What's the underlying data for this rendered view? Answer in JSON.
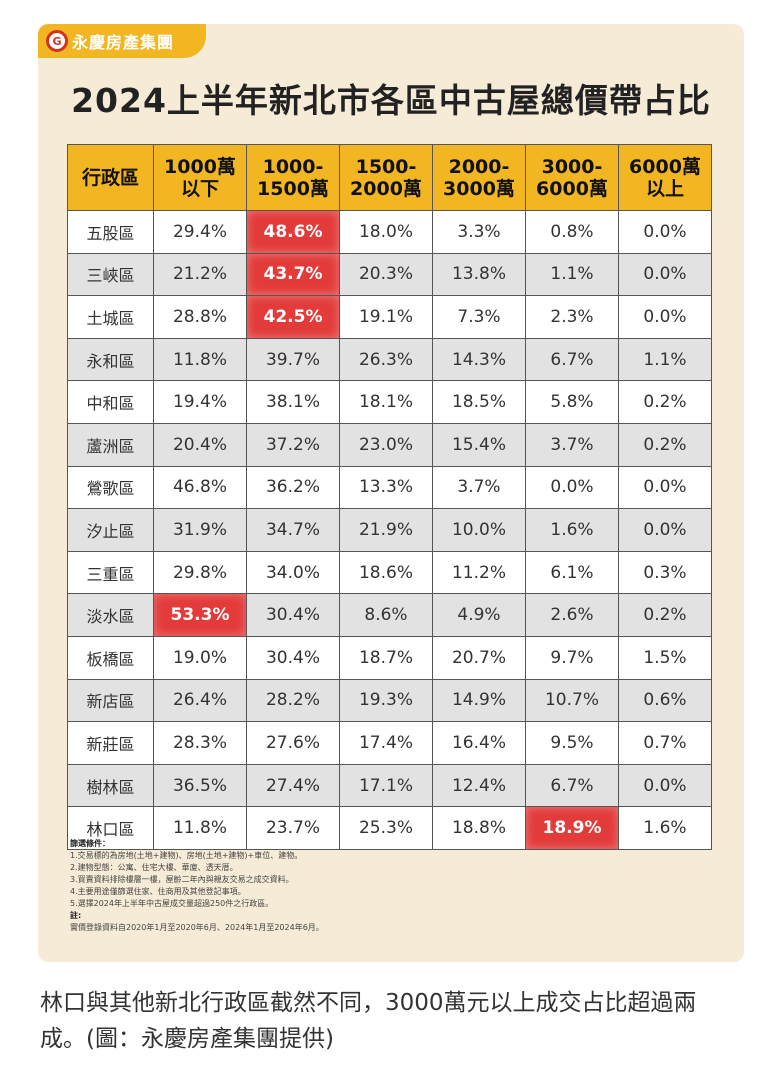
{
  "brand": {
    "name": "永慶房產集團",
    "logo_char": "G"
  },
  "title": "2024上半年新北市各區中古屋總價帶占比",
  "table": {
    "headers": [
      {
        "l1": "行政區",
        "l2": ""
      },
      {
        "l1": "1000萬",
        "l2": "以下"
      },
      {
        "l1": "1000-",
        "l2": "1500萬"
      },
      {
        "l1": "1500-",
        "l2": "2000萬"
      },
      {
        "l1": "2000-",
        "l2": "3000萬"
      },
      {
        "l1": "3000-",
        "l2": "6000萬"
      },
      {
        "l1": "6000萬",
        "l2": "以上"
      }
    ],
    "rows": [
      {
        "district": "五股區",
        "values": [
          "29.4%",
          "48.6%",
          "18.0%",
          "3.3%",
          "0.8%",
          "0.0%"
        ],
        "highlight": 1
      },
      {
        "district": "三峽區",
        "values": [
          "21.2%",
          "43.7%",
          "20.3%",
          "13.8%",
          "1.1%",
          "0.0%"
        ],
        "highlight": 1
      },
      {
        "district": "土城區",
        "values": [
          "28.8%",
          "42.5%",
          "19.1%",
          "7.3%",
          "2.3%",
          "0.0%"
        ],
        "highlight": 1
      },
      {
        "district": "永和區",
        "values": [
          "11.8%",
          "39.7%",
          "26.3%",
          "14.3%",
          "6.7%",
          "1.1%"
        ],
        "highlight": -1
      },
      {
        "district": "中和區",
        "values": [
          "19.4%",
          "38.1%",
          "18.1%",
          "18.5%",
          "5.8%",
          "0.2%"
        ],
        "highlight": -1
      },
      {
        "district": "蘆洲區",
        "values": [
          "20.4%",
          "37.2%",
          "23.0%",
          "15.4%",
          "3.7%",
          "0.2%"
        ],
        "highlight": -1
      },
      {
        "district": "鶯歌區",
        "values": [
          "46.8%",
          "36.2%",
          "13.3%",
          "3.7%",
          "0.0%",
          "0.0%"
        ],
        "highlight": -1
      },
      {
        "district": "汐止區",
        "values": [
          "31.9%",
          "34.7%",
          "21.9%",
          "10.0%",
          "1.6%",
          "0.0%"
        ],
        "highlight": -1
      },
      {
        "district": "三重區",
        "values": [
          "29.8%",
          "34.0%",
          "18.6%",
          "11.2%",
          "6.1%",
          "0.3%"
        ],
        "highlight": -1
      },
      {
        "district": "淡水區",
        "values": [
          "53.3%",
          "30.4%",
          "8.6%",
          "4.9%",
          "2.6%",
          "0.2%"
        ],
        "highlight": 0
      },
      {
        "district": "板橋區",
        "values": [
          "19.0%",
          "30.4%",
          "18.7%",
          "20.7%",
          "9.7%",
          "1.5%"
        ],
        "highlight": -1
      },
      {
        "district": "新店區",
        "values": [
          "26.4%",
          "28.2%",
          "19.3%",
          "14.9%",
          "10.7%",
          "0.6%"
        ],
        "highlight": -1
      },
      {
        "district": "新莊區",
        "values": [
          "28.3%",
          "27.6%",
          "17.4%",
          "16.4%",
          "9.5%",
          "0.7%"
        ],
        "highlight": -1
      },
      {
        "district": "樹林區",
        "values": [
          "36.5%",
          "27.4%",
          "17.1%",
          "12.4%",
          "6.7%",
          "0.0%"
        ],
        "highlight": -1
      },
      {
        "district": "林口區",
        "values": [
          "11.8%",
          "23.7%",
          "25.3%",
          "18.8%",
          "18.9%",
          "1.6%"
        ],
        "highlight": 4
      }
    ]
  },
  "notes": {
    "filter_heading": "篩選條件：",
    "filter_items": [
      "1.交易標的為房地(土地+建物)、房地(土地+建物)+車位、建物。",
      "2.建物型態：公寓、住宅大樓、華廈、透天厝。",
      "3.買賣資料排除樓層一樓，屋齡二年內與親友交易之成交資料。",
      "4.主要用途僅篩選住家、住商用及其他登記事項。",
      "5.選擇2024年上半年中古屋成交量超過250件之行政區。"
    ],
    "remark_heading": "註:",
    "remark_text": "實價登錄資料自2020年1月至2020年6月、2024年1月至2024年6月。"
  },
  "caption": "林口與其他新北行政區截然不同，3000萬元以上成交占比超過兩成。(圖：永慶房產集團提供)",
  "colors": {
    "accent": "#f2b622",
    "highlight": "#e33a3a",
    "card_bg": "#f6ebd6",
    "alt_row": "#e2e2e2"
  }
}
